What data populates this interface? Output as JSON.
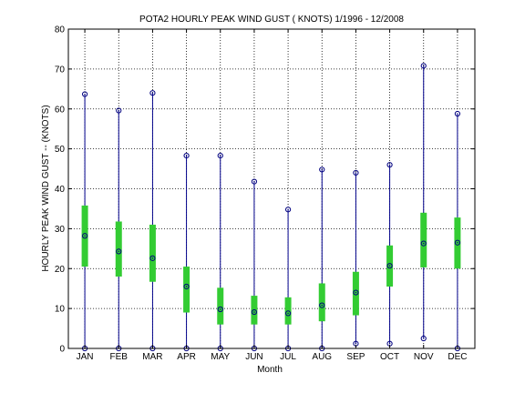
{
  "colors": {
    "whisker": "#00008b",
    "box": "#33cc33",
    "marker": "#000080",
    "grid": "#000000",
    "axis": "#000000",
    "background": "#ffffff"
  },
  "chart_data": {
    "type": "box",
    "title": "POTA2  HOURLY PEAK WIND GUST ( KNOTS) 1/1996 - 12/2008",
    "xlabel": "Month",
    "ylabel": "HOURLY PEAK WIND GUST --  (KNOTS)",
    "ylim": [
      0,
      80
    ],
    "yticks": [
      "0",
      "10",
      "20",
      "30",
      "40",
      "50",
      "60",
      "70",
      "80"
    ],
    "grid": true,
    "categories": [
      "JAN",
      "FEB",
      "MAR",
      "APR",
      "MAY",
      "JUN",
      "JUL",
      "AUG",
      "SEP",
      "OCT",
      "NOV",
      "DEC"
    ],
    "series": [
      {
        "min": 0,
        "q1": 20.5,
        "median": 28.2,
        "q3": 35.8,
        "max": 63.7
      },
      {
        "min": 0,
        "q1": 18.0,
        "median": 24.3,
        "q3": 31.8,
        "max": 59.6
      },
      {
        "min": 0,
        "q1": 16.7,
        "median": 22.6,
        "q3": 31.0,
        "max": 64.0
      },
      {
        "min": 0,
        "q1": 9.0,
        "median": 15.5,
        "q3": 20.5,
        "max": 48.3
      },
      {
        "min": 0,
        "q1": 6.0,
        "median": 9.8,
        "q3": 15.2,
        "max": 48.3
      },
      {
        "min": 0,
        "q1": 6.0,
        "median": 9.1,
        "q3": 13.2,
        "max": 41.8
      },
      {
        "min": 0,
        "q1": 6.0,
        "median": 8.8,
        "q3": 12.8,
        "max": 34.8
      },
      {
        "min": 0,
        "q1": 6.8,
        "median": 10.8,
        "q3": 16.3,
        "max": 44.8
      },
      {
        "min": 1.2,
        "q1": 8.3,
        "median": 14.0,
        "q3": 19.2,
        "max": 44.0
      },
      {
        "min": 1.2,
        "q1": 15.5,
        "median": 20.7,
        "q3": 25.8,
        "max": 46.0
      },
      {
        "min": 2.5,
        "q1": 20.3,
        "median": 26.3,
        "q3": 34.0,
        "max": 70.8
      },
      {
        "min": 0,
        "q1": 20.0,
        "median": 26.5,
        "q3": 32.8,
        "max": 58.8
      }
    ]
  }
}
